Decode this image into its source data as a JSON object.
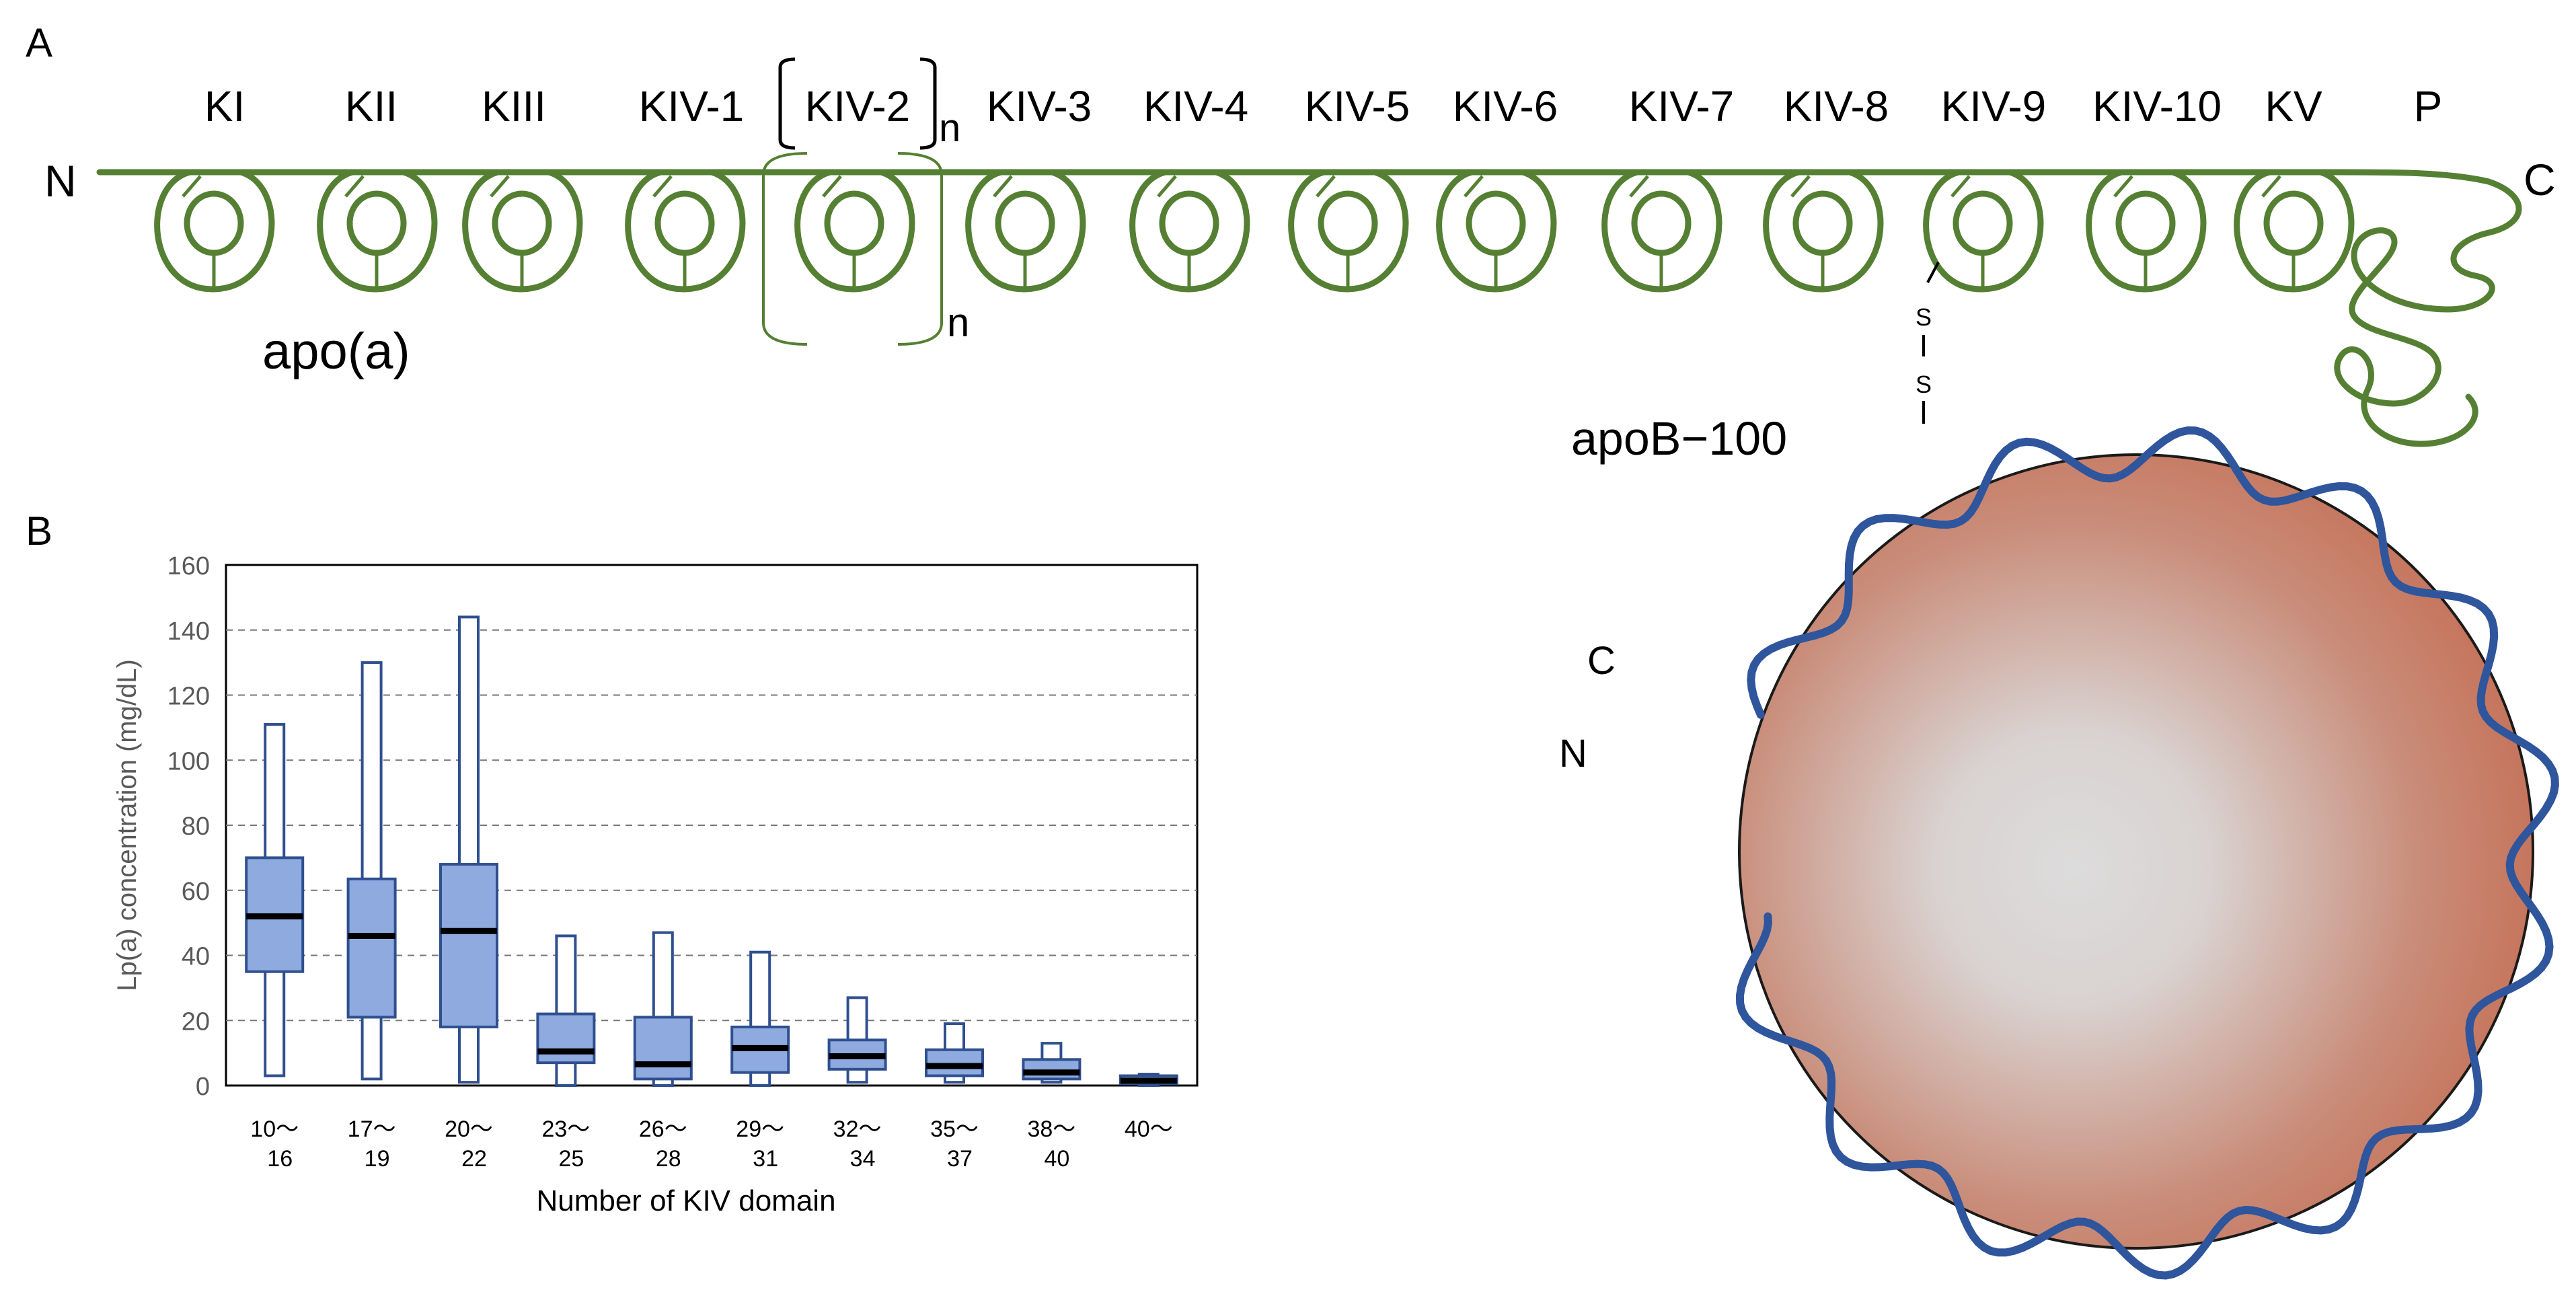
{
  "panel_a": {
    "label": "A",
    "apoa_label": "apo(a)",
    "n_term": "N",
    "c_term": "C",
    "repeat_n": "n",
    "repeat_n_bottom": "n",
    "disulfide": [
      "S",
      "S"
    ],
    "apob_label": "apoB−100",
    "particle_c": "C",
    "particle_n": "N",
    "domains": [
      "KI",
      "KII",
      "KIII",
      "KIV-1",
      "KIV-2",
      "KIV-3",
      "KIV-4",
      "KIV-5",
      "KIV-6",
      "KIV-7",
      "KIV-8",
      "KIV-9",
      "KIV-10",
      "KV",
      "P"
    ],
    "colors": {
      "chain": "#558033",
      "apob": "#2f559c",
      "particle_edge": "#1a1a1a",
      "particle_center": "#dcdcdc",
      "particle_outer": "#c56f55"
    }
  },
  "panel_b": {
    "label": "B"
  },
  "chart_data": {
    "type": "box",
    "title": "",
    "xlabel": "Number of KIV domain",
    "ylabel": "Lp(a) concentration (mg/dL)",
    "ylim": [
      0,
      160
    ],
    "yticks": [
      "0",
      "20",
      "40",
      "60",
      "80",
      "100",
      "120",
      "140",
      "160"
    ],
    "categories": [
      [
        "10～",
        "16"
      ],
      [
        "17～",
        "19"
      ],
      [
        "20～",
        "22"
      ],
      [
        "23～",
        "25"
      ],
      [
        "26～",
        "28"
      ],
      [
        "29～",
        "31"
      ],
      [
        "32～",
        "34"
      ],
      [
        "35～",
        "37"
      ],
      [
        "38～",
        "40"
      ],
      [
        "40～"
      ]
    ],
    "series": [
      {
        "name": "Lp(a)",
        "min": [
          3,
          2,
          1,
          0,
          0,
          0,
          1,
          1,
          1,
          0
        ],
        "q1": [
          35,
          21,
          18,
          7,
          2,
          4,
          5,
          3,
          2,
          0.5
        ],
        "median": [
          52,
          46,
          47.5,
          10.5,
          6.5,
          11.5,
          9,
          6,
          4,
          1.5
        ],
        "q3": [
          70,
          63.5,
          68,
          22,
          21,
          18,
          14,
          11,
          8,
          3
        ],
        "max": [
          111,
          130,
          144,
          46,
          47,
          41,
          27,
          19,
          13,
          3.5
        ]
      }
    ],
    "grid": true,
    "colors": {
      "box": "#8eaadf",
      "box_edge": "#2f4f8f",
      "median": "#000000"
    }
  }
}
